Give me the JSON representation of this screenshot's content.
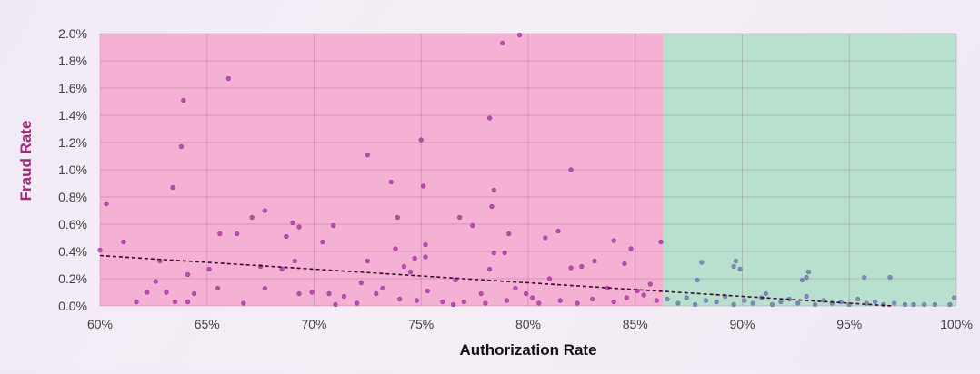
{
  "chart_data": {
    "type": "scatter",
    "x_label": "Authorization Rate",
    "y_label": "Fraud Rate",
    "xlim": [
      60,
      100
    ],
    "ylim": [
      0,
      2.0
    ],
    "xticks": [
      {
        "value": 60,
        "label": "60%"
      },
      {
        "value": 65,
        "label": "65%"
      },
      {
        "value": 70,
        "label": "70%"
      },
      {
        "value": 75,
        "label": "75%"
      },
      {
        "value": 80,
        "label": "80%"
      },
      {
        "value": 85,
        "label": "85%"
      },
      {
        "value": 90,
        "label": "90%"
      },
      {
        "value": 95,
        "label": "95%"
      },
      {
        "value": 100,
        "label": "100%"
      }
    ],
    "yticks": [
      {
        "value": 0,
        "label": "0.0%"
      },
      {
        "value": 0.2,
        "label": "0.2%"
      },
      {
        "value": 0.4,
        "label": "0.4%"
      },
      {
        "value": 0.6,
        "label": "0.6%"
      },
      {
        "value": 0.8,
        "label": "0.8%"
      },
      {
        "value": 1.0,
        "label": "1.0%"
      },
      {
        "value": 1.2,
        "label": "1.2%"
      },
      {
        "value": 1.4,
        "label": "1.4%"
      },
      {
        "value": 1.6,
        "label": "1.6%"
      },
      {
        "value": 1.8,
        "label": "1.8%"
      },
      {
        "value": 2.0,
        "label": "2.0%"
      }
    ],
    "grid": true,
    "regions": [
      {
        "from": 60,
        "to": 86.3,
        "color": "#f5b1d3",
        "point_color": "#a1309c"
      },
      {
        "from": 86.3,
        "to": 100,
        "color": "#b9e0cf",
        "point_color": "#6b70a8"
      }
    ],
    "trendline": {
      "x": [
        60,
        97
      ],
      "y": [
        0.37,
        0.0
      ],
      "color": "#3a0a2a"
    },
    "x": [
      60.0,
      60.3,
      61.1,
      61.7,
      62.2,
      62.6,
      62.8,
      63.1,
      63.4,
      63.5,
      63.8,
      63.9,
      64.1,
      64.1,
      64.4,
      65.1,
      65.5,
      65.6,
      66.0,
      66.4,
      66.7,
      67.1,
      67.5,
      67.7,
      67.7,
      68.5,
      68.7,
      69.0,
      69.1,
      69.3,
      69.3,
      69.9,
      70.4,
      70.7,
      70.9,
      71.4,
      72.2,
      72.5,
      72.5,
      72.9,
      73.2,
      73.6,
      73.8,
      73.9,
      74.0,
      74.2,
      74.5,
      74.7,
      75.0,
      75.1,
      75.2,
      75.2,
      75.3,
      76.0,
      76.6,
      76.8,
      77.4,
      77.8,
      78.2,
      78.2,
      78.3,
      78.4,
      78.4,
      78.8,
      78.9,
      79.1,
      79.4,
      79.6,
      79.9,
      80.2,
      80.8,
      81.0,
      81.4,
      82.0,
      82.0,
      82.5,
      83.1,
      83.7,
      84.0,
      84.5,
      84.8,
      85.1,
      85.7,
      86.2,
      88.1,
      87.9,
      89.6,
      89.7,
      89.9,
      91.1,
      93.0,
      93.1,
      92.8,
      95.7,
      96.9,
      99.9,
      99.7,
      86.5,
      87.0,
      87.4,
      87.8,
      88.3,
      88.8,
      89.2,
      89.6,
      90.1,
      90.5,
      90.9,
      91.4,
      91.8,
      92.2,
      92.6,
      93.0,
      93.4,
      93.8,
      94.2,
      94.6,
      95.0,
      95.4,
      95.8,
      96.2,
      96.6,
      97.1,
      97.6,
      98.0,
      98.5,
      99.0,
      76.5,
      77.0,
      78.0,
      79.0,
      80.5,
      81.5,
      82.3,
      83.0,
      84.0,
      84.6,
      85.4,
      86.0,
      72.0,
      74.8,
      71.0
    ],
    "y": [
      0.41,
      0.75,
      0.47,
      0.03,
      0.1,
      0.18,
      0.33,
      0.1,
      0.87,
      0.03,
      1.17,
      1.51,
      0.23,
      0.03,
      0.09,
      0.27,
      0.13,
      0.53,
      1.67,
      0.53,
      0.02,
      0.65,
      0.29,
      0.7,
      0.13,
      0.27,
      0.51,
      0.61,
      0.33,
      0.58,
      0.09,
      0.1,
      0.47,
      0.09,
      0.59,
      0.07,
      0.17,
      1.11,
      0.33,
      0.09,
      0.13,
      0.91,
      0.42,
      0.65,
      0.05,
      0.29,
      0.25,
      0.35,
      1.22,
      0.88,
      0.45,
      0.36,
      0.11,
      0.03,
      0.19,
      0.65,
      0.59,
      0.09,
      0.27,
      1.38,
      0.73,
      0.85,
      0.39,
      1.93,
      0.39,
      0.53,
      0.13,
      1.99,
      0.09,
      0.06,
      0.5,
      0.2,
      0.55,
      1.0,
      0.28,
      0.29,
      0.33,
      0.13,
      0.48,
      0.31,
      0.42,
      0.11,
      0.16,
      0.47,
      0.32,
      0.19,
      0.29,
      0.33,
      0.27,
      0.09,
      0.21,
      0.25,
      0.19,
      0.21,
      0.21,
      0.06,
      0.01,
      0.05,
      0.02,
      0.06,
      0.01,
      0.04,
      0.03,
      0.07,
      0.01,
      0.04,
      0.02,
      0.06,
      0.01,
      0.03,
      0.05,
      0.02,
      0.07,
      0.01,
      0.04,
      0.02,
      0.03,
      0.01,
      0.05,
      0.02,
      0.03,
      0.01,
      0.02,
      0.01,
      0.01,
      0.01,
      0.01,
      0.01,
      0.03,
      0.02,
      0.04,
      0.02,
      0.04,
      0.02,
      0.05,
      0.03,
      0.06,
      0.08,
      0.04,
      0.02,
      0.04,
      0.01
    ]
  }
}
